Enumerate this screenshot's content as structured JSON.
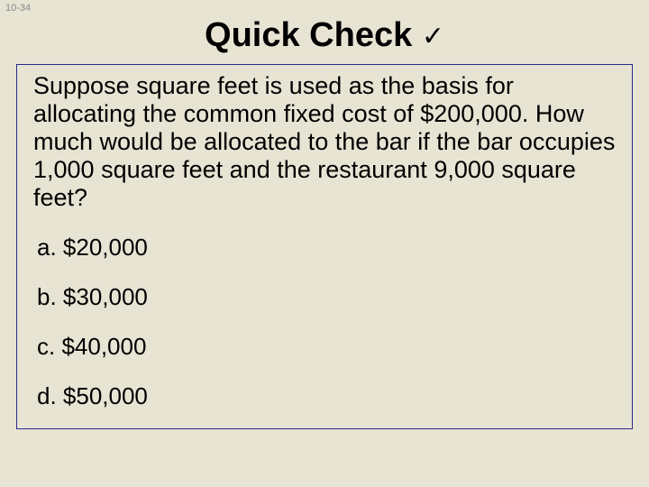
{
  "slideNumber": "10-34",
  "title": "Quick Check",
  "checkmark": "✓",
  "question": "Suppose square feet is used as the basis for allocating the common fixed cost of $200,000. How much would be allocated to the bar if the bar occupies 1,000 square feet and the restaurant 9,000 square feet?",
  "options": {
    "a": "a. $20,000",
    "b": "b. $30,000",
    "c": "c. $40,000",
    "d": "d. $50,000"
  },
  "colors": {
    "background": "#e8e4d4",
    "border": "#2a2a8a",
    "text": "#000000",
    "slideNum": "#8a8a8a"
  }
}
